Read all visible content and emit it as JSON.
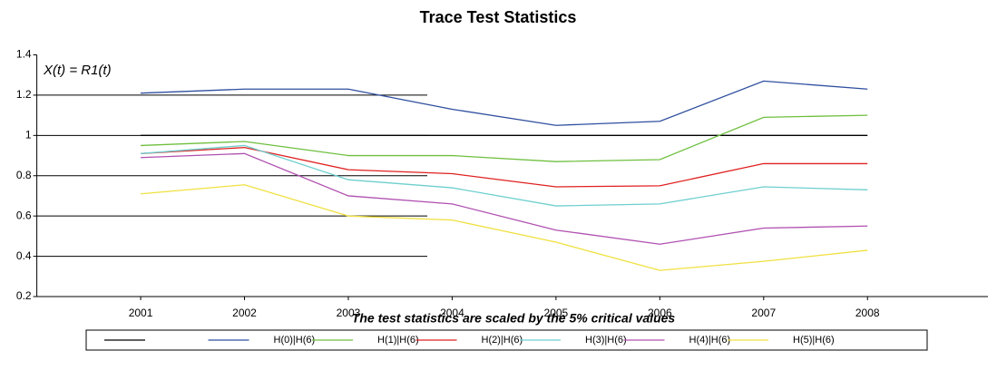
{
  "chart_data": {
    "type": "line",
    "title": "Trace Test Statistics",
    "annotation": "X(t) = R1(t)",
    "x_label": "The test statistics are scaled by the 5% critical values",
    "x": [
      2001,
      2002,
      2003,
      2004,
      2005,
      2006,
      2007,
      2008
    ],
    "xlim": [
      2000,
      2009.16
    ],
    "xticks": [
      2001,
      2002,
      2003,
      2004,
      2005,
      2006,
      2007,
      2008
    ],
    "ylim": [
      0.2,
      1.4
    ],
    "yticks": [
      0.2,
      0.4,
      0.6,
      0.8,
      1.0,
      1.2,
      1.4
    ],
    "grid": true,
    "series": [
      {
        "color": "#000000",
        "values": [
          1.0,
          1.0,
          1.0,
          1.0,
          1.0,
          1.0,
          1.0,
          1.0
        ]
      },
      {
        "name": "H(0)|H(6)",
        "color": "#2f4f9f",
        "values": [
          1.21,
          1.23,
          1.23,
          1.13,
          1.05,
          1.07,
          1.27,
          1.23
        ]
      },
      {
        "name": "H(1)|H(6)",
        "color": "#6fbf3f",
        "values": [
          0.95,
          0.97,
          0.9,
          0.9,
          0.87,
          0.88,
          1.09,
          1.1
        ]
      },
      {
        "name": "H(2)|H(6)",
        "color": "#e02020",
        "values": [
          0.91,
          0.94,
          0.83,
          0.81,
          0.745,
          0.75,
          0.86,
          0.86
        ]
      },
      {
        "name": "H(3)|H(6)",
        "color": "#6fcfcf",
        "values": [
          0.91,
          0.95,
          0.78,
          0.74,
          0.65,
          0.66,
          0.745,
          0.73
        ]
      },
      {
        "name": "H(4)|H(6)",
        "color": "#b050b0",
        "values": [
          0.89,
          0.91,
          0.7,
          0.66,
          0.53,
          0.46,
          0.54,
          0.55
        ]
      },
      {
        "name": "H(5)|H(6)",
        "color": "#f0e040",
        "values": [
          0.71,
          0.755,
          0.6,
          0.58,
          0.47,
          0.33,
          0.375,
          0.43
        ]
      }
    ]
  }
}
